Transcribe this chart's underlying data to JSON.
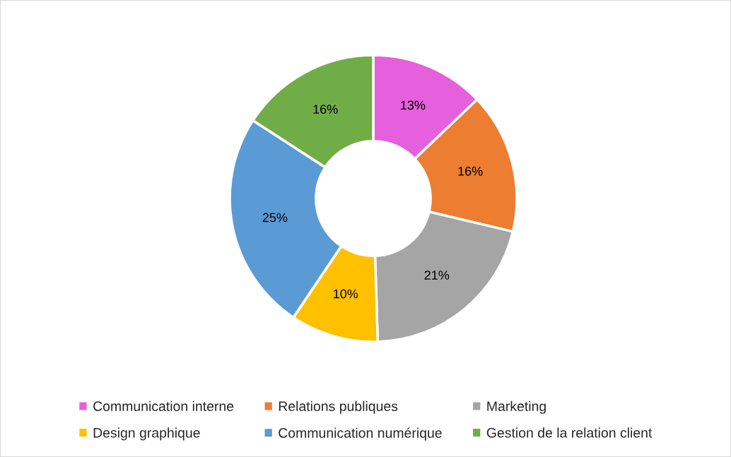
{
  "chart_data": {
    "type": "donut",
    "categories": [
      "Communication interne",
      "Relations publiques",
      "Marketing",
      "Design graphique",
      "Communication numérique",
      "Gestion de la relation client"
    ],
    "values": [
      13,
      16,
      21,
      10,
      25,
      16
    ],
    "colors": [
      "#e65fdc",
      "#ed7d31",
      "#a5a5a5",
      "#ffc000",
      "#5b9bd5",
      "#70ad47"
    ],
    "value_labels": [
      "13%",
      "16%",
      "21%",
      "10%",
      "25%",
      "16%"
    ],
    "legend": "bottom"
  }
}
